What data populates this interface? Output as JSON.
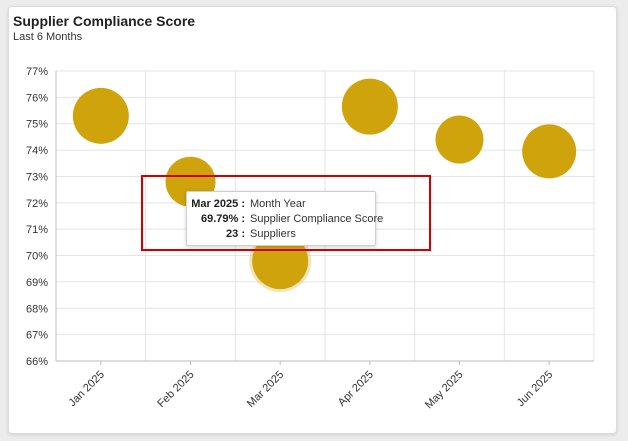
{
  "card": {
    "title": "Supplier Compliance Score",
    "subtitle": "Last 6 Months"
  },
  "chart_data": {
    "type": "scatter",
    "title": "Supplier Compliance Score",
    "subtitle": "Last 6 Months",
    "categories": [
      "Jan 2025",
      "Feb 2025",
      "Mar 2025",
      "Apr 2025",
      "May 2025",
      "Jun 2025"
    ],
    "series": [
      {
        "values": [
          75.3,
          72.8,
          69.79,
          75.65,
          74.4,
          73.95
        ],
        "bubble_size": [
          28,
          25,
          28,
          28,
          24,
          27
        ]
      }
    ],
    "ylim": [
      66,
      77
    ],
    "yticks": [
      "66%",
      "67%",
      "68%",
      "69%",
      "70%",
      "71%",
      "72%",
      "73%",
      "74%",
      "75%",
      "76%",
      "77%"
    ],
    "grid": true,
    "bubble_color": "#CFA30B",
    "active_index": 2
  },
  "tooltip": {
    "rows": [
      {
        "key": "Mar 2025 :",
        "value": "Month Year"
      },
      {
        "key": "69.79% :",
        "value": "Supplier Compliance Score"
      },
      {
        "key": "23 :",
        "value": "Suppliers"
      }
    ]
  },
  "annotation": {
    "color": "#D00000"
  }
}
